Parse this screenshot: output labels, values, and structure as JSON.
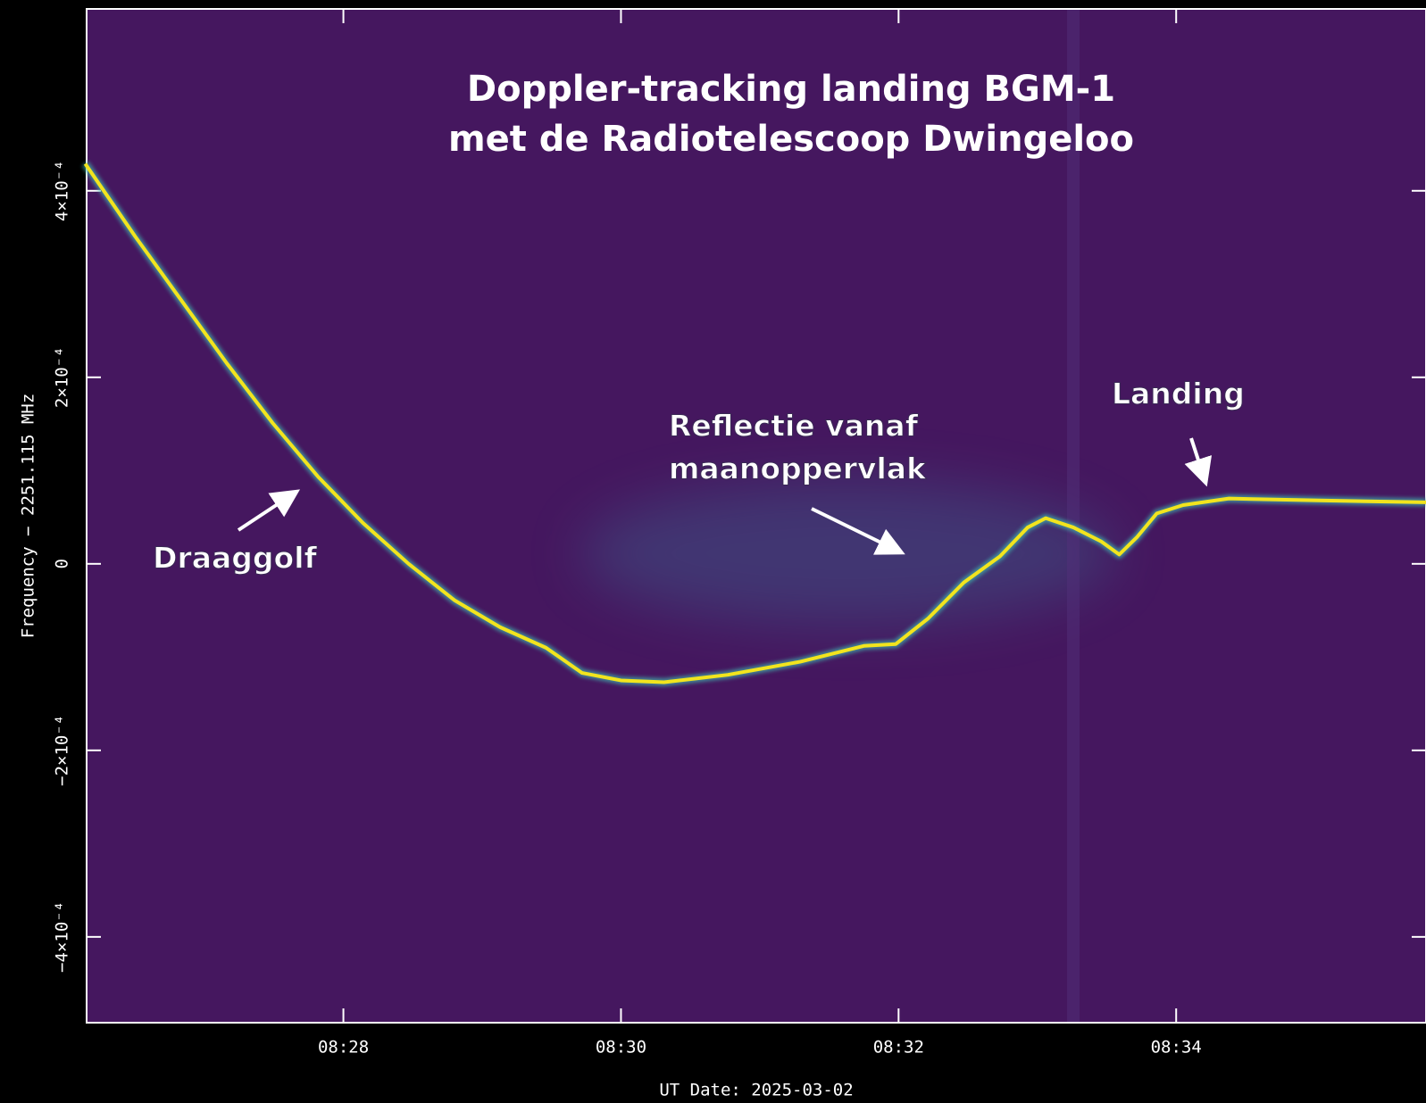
{
  "chart_data": {
    "type": "line",
    "title": [
      "Doppler-tracking landing BGM-1",
      "met de Radiotelescoop Dwingeloo"
    ],
    "xlabel": "UT Date: 2025-03-02",
    "ylabel": "Frequency  −  2251.115 MHz",
    "annotations": [
      {
        "lines": [
          "Draaggolf"
        ]
      },
      {
        "lines": [
          "Reflectie vanaf",
          "maanoppervlak"
        ]
      },
      {
        "lines": [
          "Landing"
        ]
      }
    ],
    "xlim": [
      506.15,
      515.8
    ],
    "xticks": [
      {
        "value": 508,
        "label": "08:28"
      },
      {
        "value": 510,
        "label": "08:30"
      },
      {
        "value": 512,
        "label": "08:32"
      },
      {
        "value": 514,
        "label": "08:34"
      }
    ],
    "ylim": [
      -0.000492,
      0.000595
    ],
    "yticks": [
      {
        "value": 0.0004,
        "label": "4×10⁻⁴"
      },
      {
        "value": 0.0002,
        "label": "2×10⁻⁴"
      },
      0,
      {
        "value": -0.0002,
        "label": "−2×10⁻⁴"
      },
      {
        "value": -0.0004,
        "label": "−4×10⁻⁴"
      }
    ],
    "series": [
      {
        "color": "#f2e41e",
        "x": [
          506.14,
          506.5,
          506.83,
          507.16,
          507.49,
          507.82,
          508.14,
          508.47,
          508.8,
          509.13,
          509.46,
          509.72,
          510.0,
          510.31,
          510.77,
          511.29,
          511.75,
          511.98,
          512.21,
          512.47,
          512.73,
          512.93,
          513.06,
          513.26,
          513.46,
          513.59,
          513.72,
          513.86,
          514.05,
          514.38,
          515.03,
          515.8
        ],
        "values": [
          0.000429,
          0.000351,
          0.000283,
          0.000215,
          0.000151,
          9.3e-05,
          4.4e-05,
          0,
          -3.9e-05,
          -6.8e-05,
          -9e-05,
          -0.000117,
          -0.000125,
          -0.000127,
          -0.000119,
          -0.000105,
          -8.8e-05,
          -8.6e-05,
          -5.9e-05,
          -2e-05,
          8e-06,
          3.9e-05,
          4.9e-05,
          3.9e-05,
          2.4e-05,
          1e-05,
          2.9e-05,
          5.4e-05,
          6.3e-05,
          7e-05,
          6.8e-05,
          6.6e-05
        ]
      }
    ]
  }
}
